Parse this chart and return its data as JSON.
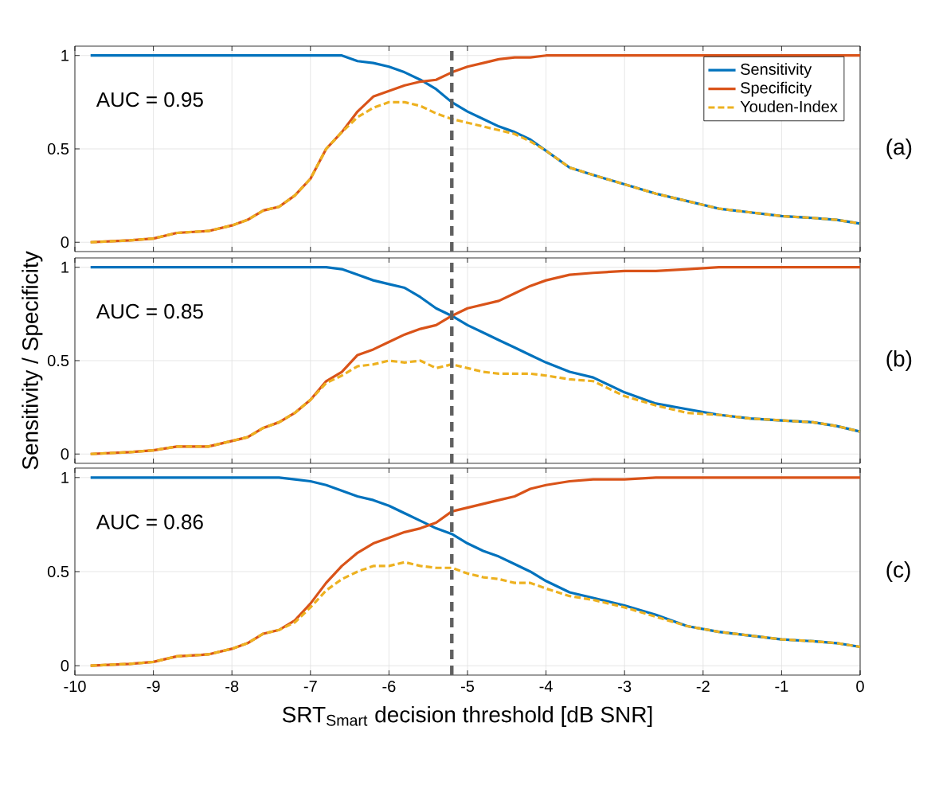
{
  "chart_data": [
    {
      "type": "line",
      "annotations": [
        "AUC = 0.95",
        "(a)"
      ],
      "xlim": [
        -10,
        0
      ],
      "ylim": [
        -0.05,
        1.05
      ],
      "yticks": [
        0,
        0.5,
        1
      ],
      "xticks": [
        -10,
        -9,
        -8,
        -7,
        -6,
        -5,
        -4,
        -3,
        -2,
        -1,
        0
      ],
      "grid": true,
      "legend": "top right",
      "tick_labels": "y",
      "marker": "none",
      "x": [
        -9.8,
        -9.3,
        -9,
        -8.7,
        -8.3,
        -8,
        -7.8,
        -7.6,
        -7.4,
        -7.2,
        -7,
        -6.8,
        -6.6,
        -6.4,
        -6.2,
        -6,
        -5.8,
        -5.6,
        -5.4,
        -5.2,
        -5,
        -4.8,
        -4.6,
        -4.4,
        -4.2,
        -4,
        -3.7,
        -3.4,
        -3,
        -2.6,
        -2.2,
        -1.8,
        -1.4,
        -1,
        -0.6,
        -0.3,
        0
      ],
      "ref_lines": [
        {
          "axis": "x",
          "value": -5.2,
          "color": "#606060",
          "line_style": "dashed"
        }
      ],
      "series": [
        {
          "name": "Sensitivity",
          "color": "#0072bd",
          "line_style": "solid",
          "values": [
            1,
            1,
            1,
            1,
            1,
            1,
            1,
            1,
            1,
            1,
            1,
            1,
            1,
            0.97,
            0.96,
            0.94,
            0.91,
            0.87,
            0.82,
            0.75,
            0.7,
            0.66,
            0.62,
            0.59,
            0.55,
            0.49,
            0.4,
            0.36,
            0.31,
            0.26,
            0.22,
            0.18,
            0.16,
            0.14,
            0.13,
            0.12,
            0.1
          ]
        },
        {
          "name": "Specificity",
          "color": "#d95319",
          "line_style": "solid",
          "values": [
            0,
            0.01,
            0.02,
            0.05,
            0.06,
            0.09,
            0.12,
            0.17,
            0.19,
            0.25,
            0.34,
            0.5,
            0.59,
            0.7,
            0.78,
            0.81,
            0.84,
            0.86,
            0.87,
            0.91,
            0.94,
            0.96,
            0.98,
            0.99,
            0.99,
            1,
            1,
            1,
            1,
            1,
            1,
            1,
            1,
            1,
            1,
            1,
            1
          ]
        },
        {
          "name": "Youden-Index",
          "color": "#edb120",
          "line_style": "dashed",
          "values": [
            0,
            0.01,
            0.02,
            0.05,
            0.06,
            0.09,
            0.12,
            0.17,
            0.19,
            0.25,
            0.34,
            0.5,
            0.59,
            0.67,
            0.72,
            0.75,
            0.75,
            0.73,
            0.69,
            0.66,
            0.64,
            0.62,
            0.6,
            0.58,
            0.54,
            0.49,
            0.4,
            0.36,
            0.31,
            0.26,
            0.22,
            0.18,
            0.16,
            0.14,
            0.13,
            0.12,
            0.1
          ]
        }
      ]
    },
    {
      "type": "line",
      "annotations": [
        "AUC = 0.85",
        "(b)"
      ],
      "ylabel": "Sensitivity / Specificity",
      "xlim": [
        -10,
        0
      ],
      "ylim": [
        -0.05,
        1.05
      ],
      "yticks": [
        0,
        0.5,
        1
      ],
      "xticks": [
        -10,
        -9,
        -8,
        -7,
        -6,
        -5,
        -4,
        -3,
        -2,
        -1,
        0
      ],
      "grid": true,
      "tick_labels": "y",
      "marker": "none",
      "x": [
        -9.8,
        -9.3,
        -9,
        -8.7,
        -8.3,
        -8,
        -7.8,
        -7.6,
        -7.4,
        -7.2,
        -7,
        -6.8,
        -6.6,
        -6.4,
        -6.2,
        -6,
        -5.8,
        -5.6,
        -5.4,
        -5.2,
        -5,
        -4.8,
        -4.6,
        -4.4,
        -4.2,
        -4,
        -3.7,
        -3.4,
        -3,
        -2.6,
        -2.2,
        -1.8,
        -1.4,
        -1,
        -0.6,
        -0.3,
        0
      ],
      "ref_lines": [
        {
          "axis": "x",
          "value": -5.2,
          "color": "#606060",
          "line_style": "dashed"
        }
      ],
      "series": [
        {
          "color": "#0072bd",
          "line_style": "solid",
          "values": [
            1,
            1,
            1,
            1,
            1,
            1,
            1,
            1,
            1,
            1,
            1,
            1,
            0.99,
            0.96,
            0.93,
            0.91,
            0.89,
            0.84,
            0.78,
            0.74,
            0.69,
            0.65,
            0.61,
            0.57,
            0.53,
            0.49,
            0.44,
            0.41,
            0.33,
            0.27,
            0.24,
            0.21,
            0.19,
            0.18,
            0.17,
            0.15,
            0.12
          ]
        },
        {
          "color": "#d95319",
          "line_style": "solid",
          "values": [
            0,
            0.01,
            0.02,
            0.04,
            0.04,
            0.07,
            0.09,
            0.14,
            0.17,
            0.22,
            0.29,
            0.39,
            0.44,
            0.53,
            0.56,
            0.6,
            0.64,
            0.67,
            0.69,
            0.74,
            0.78,
            0.8,
            0.82,
            0.86,
            0.9,
            0.93,
            0.96,
            0.97,
            0.98,
            0.98,
            0.99,
            1,
            1,
            1,
            1,
            1,
            1
          ]
        },
        {
          "color": "#edb120",
          "line_style": "dashed",
          "values": [
            0,
            0.01,
            0.02,
            0.04,
            0.04,
            0.07,
            0.09,
            0.14,
            0.17,
            0.22,
            0.29,
            0.38,
            0.42,
            0.47,
            0.48,
            0.5,
            0.49,
            0.5,
            0.46,
            0.48,
            0.46,
            0.44,
            0.43,
            0.43,
            0.43,
            0.42,
            0.4,
            0.39,
            0.31,
            0.26,
            0.22,
            0.21,
            0.19,
            0.18,
            0.17,
            0.15,
            0.12
          ]
        }
      ]
    },
    {
      "type": "line",
      "annotations": [
        "AUC = 0.86",
        "(c)"
      ],
      "xlabel": "SRT$_{Smart}$ decision threshold [dB SNR]",
      "xlim": [
        -10,
        0
      ],
      "ylim": [
        -0.05,
        1.05
      ],
      "yticks": [
        0,
        0.5,
        1
      ],
      "xticks": [
        -10,
        -9,
        -8,
        -7,
        -6,
        -5,
        -4,
        -3,
        -2,
        -1,
        0
      ],
      "grid": true,
      "marker": "none",
      "x": [
        -9.8,
        -9.3,
        -9,
        -8.7,
        -8.3,
        -8,
        -7.8,
        -7.6,
        -7.4,
        -7.2,
        -7,
        -6.8,
        -6.6,
        -6.4,
        -6.2,
        -6,
        -5.8,
        -5.6,
        -5.4,
        -5.2,
        -5,
        -4.8,
        -4.6,
        -4.4,
        -4.2,
        -4,
        -3.7,
        -3.4,
        -3,
        -2.6,
        -2.2,
        -1.8,
        -1.4,
        -1,
        -0.6,
        -0.3,
        0
      ],
      "ref_lines": [
        {
          "axis": "x",
          "value": -5.2,
          "color": "#606060",
          "line_style": "dashed"
        }
      ],
      "series": [
        {
          "color": "#0072bd",
          "line_style": "solid",
          "values": [
            1,
            1,
            1,
            1,
            1,
            1,
            1,
            1,
            1,
            0.99,
            0.98,
            0.96,
            0.93,
            0.9,
            0.88,
            0.85,
            0.81,
            0.77,
            0.73,
            0.7,
            0.65,
            0.61,
            0.58,
            0.54,
            0.5,
            0.45,
            0.39,
            0.36,
            0.32,
            0.27,
            0.21,
            0.18,
            0.16,
            0.14,
            0.13,
            0.12,
            0.1
          ]
        },
        {
          "color": "#d95319",
          "line_style": "solid",
          "values": [
            0,
            0.01,
            0.02,
            0.05,
            0.06,
            0.09,
            0.12,
            0.17,
            0.19,
            0.24,
            0.33,
            0.44,
            0.53,
            0.6,
            0.65,
            0.68,
            0.71,
            0.73,
            0.76,
            0.82,
            0.84,
            0.86,
            0.88,
            0.9,
            0.94,
            0.96,
            0.98,
            0.99,
            0.99,
            1,
            1,
            1,
            1,
            1,
            1,
            1,
            1
          ]
        },
        {
          "color": "#edb120",
          "line_style": "dashed",
          "values": [
            0,
            0.01,
            0.02,
            0.05,
            0.06,
            0.09,
            0.12,
            0.17,
            0.19,
            0.23,
            0.31,
            0.4,
            0.46,
            0.5,
            0.53,
            0.53,
            0.55,
            0.53,
            0.52,
            0.52,
            0.49,
            0.47,
            0.46,
            0.44,
            0.44,
            0.41,
            0.37,
            0.35,
            0.31,
            0.26,
            0.21,
            0.18,
            0.16,
            0.14,
            0.13,
            0.12,
            0.1
          ]
        }
      ]
    }
  ]
}
